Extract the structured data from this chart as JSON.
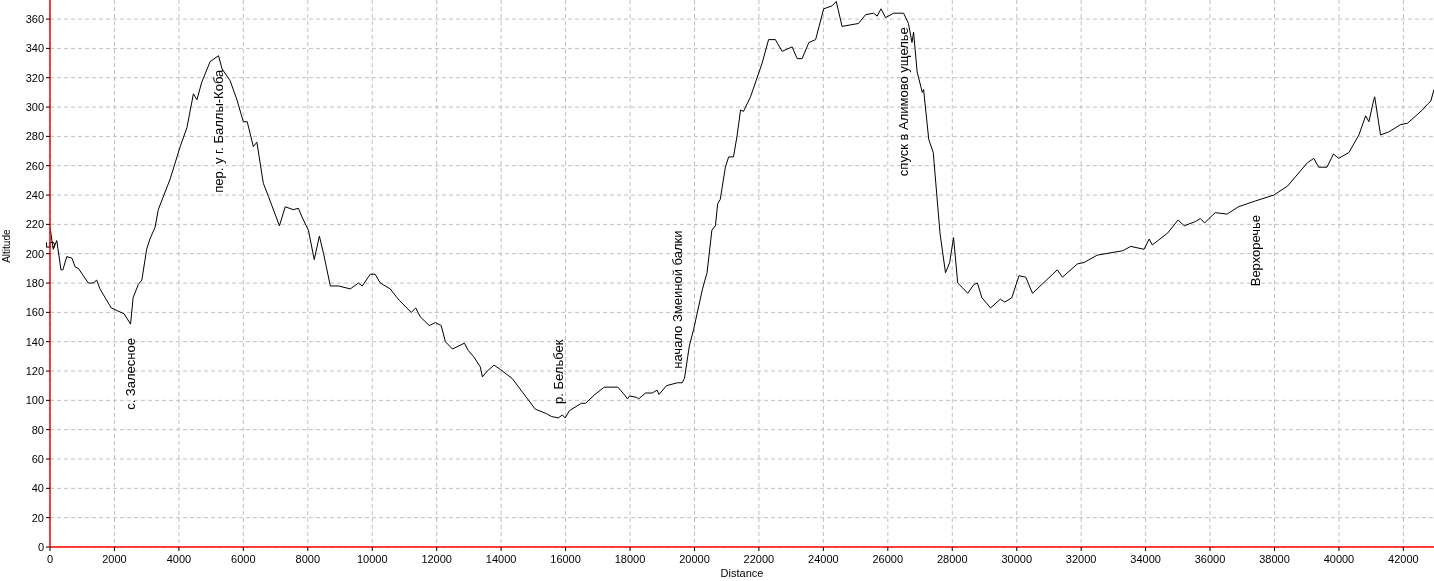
{
  "chart_data": {
    "type": "line",
    "xlabel": "Distance",
    "ylabel": "Altitude",
    "xlim": [
      0,
      42950
    ],
    "ylim": [
      0,
      373
    ],
    "xticks": [
      0,
      2000,
      4000,
      6000,
      8000,
      10000,
      12000,
      14000,
      16000,
      18000,
      20000,
      22000,
      24000,
      26000,
      28000,
      30000,
      32000,
      34000,
      36000,
      38000,
      40000,
      42000
    ],
    "yticks": [
      0,
      20,
      40,
      60,
      80,
      100,
      120,
      140,
      160,
      180,
      200,
      220,
      240,
      260,
      280,
      300,
      320,
      340,
      360
    ],
    "grid": true,
    "annotations": [
      {
        "text": "5",
        "x": 0,
        "y": 218
      },
      {
        "text": "с. Залесное",
        "x": 2500,
        "y": 152
      },
      {
        "text": "пер. у г. Баллы-Коба",
        "x": 5230,
        "y": 335
      },
      {
        "text": "р. Бельбек",
        "x": 15770,
        "y": 88
      },
      {
        "text": "начало Змеиной балки",
        "x": 19470,
        "y": 112
      },
      {
        "text": "спуск в Алимово ущелье",
        "x": 26490,
        "y": 364
      },
      {
        "text": "Верхоречье",
        "x": 37410,
        "y": 236
      }
    ],
    "series": [
      {
        "color": "#000000",
        "x": [
          0,
          100,
          210,
          340,
          400,
          520,
          680,
          780,
          880,
          1190,
          1340,
          1450,
          1550,
          1900,
          2300,
          2500,
          2580,
          2740,
          2850,
          3000,
          3100,
          3260,
          3360,
          3730,
          4040,
          4250,
          4450,
          4560,
          4710,
          4970,
          5230,
          5340,
          5590,
          5800,
          6000,
          6120,
          6310,
          6420,
          6620,
          6780,
          7120,
          7300,
          7550,
          7710,
          7820,
          8020,
          8200,
          8360,
          8490,
          8700,
          8950,
          9320,
          9570,
          9690,
          9940,
          10090,
          10250,
          10560,
          10770,
          10850,
          11210,
          11350,
          11490,
          11770,
          11960,
          12140,
          12270,
          12490,
          12860,
          12980,
          13140,
          13350,
          13420,
          13570,
          13780,
          13980,
          14340,
          15060,
          15400,
          15560,
          15770,
          15900,
          15990,
          16120,
          16490,
          16620,
          16910,
          17200,
          17620,
          17820,
          17920,
          17990,
          18200,
          18270,
          18480,
          18690,
          18840,
          18900,
          19130,
          19470,
          19620,
          19690,
          19840,
          19970,
          20250,
          20390,
          20540,
          20650,
          20720,
          20800,
          20960,
          21060,
          21210,
          21320,
          21430,
          21520,
          21740,
          22100,
          22300,
          22510,
          22720,
          23030,
          23190,
          23340,
          23550,
          23760,
          24010,
          24270,
          24400,
          24580,
          25090,
          25310,
          25560,
          25670,
          25790,
          25930,
          26180,
          26490,
          26640,
          26750,
          26800,
          26910,
          27070,
          27110,
          27270,
          27410,
          27620,
          27790,
          27920,
          28040,
          28170,
          28310,
          28480,
          28670,
          28780,
          28920,
          29190,
          29490,
          29630,
          29850,
          30070,
          30280,
          30490,
          31260,
          31420,
          31880,
          32090,
          32500,
          33020,
          33290,
          33540,
          33950,
          34110,
          34210,
          34680,
          35010,
          35200,
          35550,
          35700,
          35830,
          36160,
          36530,
          36880,
          37410,
          37980,
          38400,
          39020,
          39220,
          39370,
          39630,
          39830,
          39990,
          40310,
          40620,
          40830,
          40930,
          41080,
          41110,
          41290,
          41540,
          41910,
          42130,
          42590,
          42750,
          42850,
          42950
        ],
        "values": [
          218,
          203,
          209,
          189,
          189,
          198,
          197,
          191,
          190,
          180,
          180,
          182,
          176,
          163,
          159,
          152,
          170,
          179,
          182,
          203,
          210,
          218,
          230,
          251,
          273,
          286,
          309,
          305,
          317,
          331,
          335,
          326,
          318,
          305,
          290,
          290,
          273,
          276,
          248,
          239,
          219,
          232,
          230,
          231,
          225,
          216,
          196,
          212,
          200,
          178,
          178,
          176,
          180,
          178,
          186,
          186,
          180,
          176,
          170,
          168,
          160,
          163,
          157,
          151,
          153,
          151,
          140,
          135,
          139,
          134,
          130,
          123,
          116,
          120,
          124,
          121,
          115,
          94,
          91,
          89,
          88,
          90,
          88,
          93,
          98,
          98,
          104,
          109,
          109,
          104,
          101,
          103,
          102,
          101,
          105,
          105,
          107,
          104,
          110,
          112,
          112,
          115,
          137,
          148,
          176,
          187,
          216,
          219,
          234,
          237,
          259,
          266,
          266,
          280,
          298,
          297,
          307,
          330,
          346,
          346,
          338,
          341,
          333,
          333,
          344,
          346,
          367,
          369,
          372,
          355,
          357,
          363,
          364,
          362,
          367,
          361,
          364,
          364,
          357,
          344,
          351,
          324,
          310,
          312,
          278,
          269,
          214,
          187,
          194,
          211,
          180,
          177,
          173,
          179,
          180,
          170,
          163,
          169,
          167,
          170,
          185,
          184,
          173,
          189,
          184,
          193,
          194,
          199,
          201,
          202,
          205,
          203,
          210,
          206,
          214,
          223,
          219,
          222,
          224,
          221,
          228,
          227,
          232,
          236,
          240,
          246,
          262,
          265,
          259,
          259,
          268,
          265,
          269,
          281,
          294,
          290,
          305,
          307,
          281,
          283,
          288,
          289,
          298,
          302,
          304,
          312
        ]
      }
    ]
  }
}
